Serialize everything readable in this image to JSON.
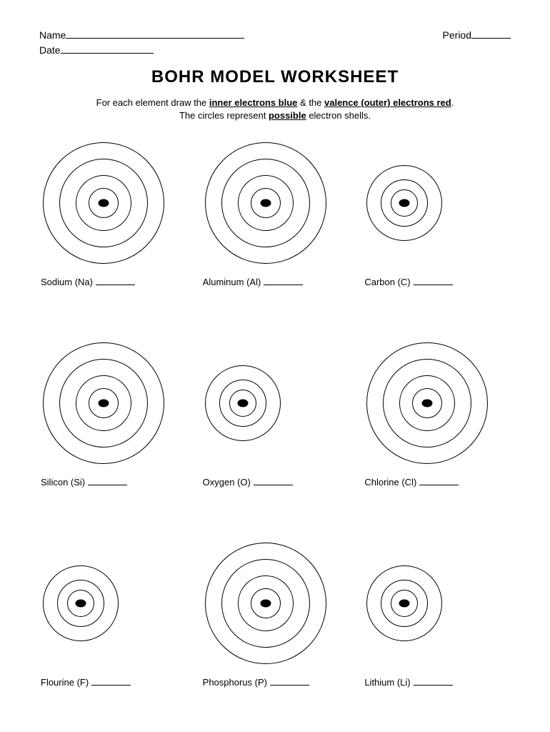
{
  "header": {
    "name_label": "Name",
    "name_blank_width": 250,
    "period_label": "Period",
    "period_blank_width": 55,
    "date_label": "Date",
    "date_blank_width": 130
  },
  "title": "BOHR MODEL WORKSHEET",
  "instructions": {
    "prefix": "For each element draw the ",
    "inner": "inner electrons blue",
    "middle": " & the ",
    "valence": "valence (outer) electrons red",
    "suffix": "."
  },
  "sub_instructions": {
    "prefix": "The circles represent ",
    "possible": "possible",
    "suffix": " electron shells."
  },
  "diagram_style": {
    "ring_stroke": "#000000",
    "ring_stroke_width": 1.5,
    "nucleus_color": "#000000",
    "nucleus_w": 15,
    "nucleus_h": 11
  },
  "elements": [
    {
      "label": "Sodium (Na)",
      "rings": [
        170,
        124,
        78,
        42
      ]
    },
    {
      "label": "Aluminum (Al)",
      "rings": [
        170,
        124,
        78,
        42
      ]
    },
    {
      "label": "Carbon (C)",
      "rings": [
        106,
        66,
        38
      ]
    },
    {
      "label": "Silicon (Si)",
      "rings": [
        170,
        124,
        78,
        42
      ]
    },
    {
      "label": "Oxygen (O)",
      "rings": [
        106,
        66,
        38
      ]
    },
    {
      "label": "Chlorine (Cl)",
      "rings": [
        170,
        124,
        78,
        42
      ]
    },
    {
      "label": "Flourine (F)",
      "rings": [
        106,
        66,
        38
      ]
    },
    {
      "label": "Phosphorus (P)",
      "rings": [
        170,
        124,
        78,
        42
      ]
    },
    {
      "label": "Lithium (Li)",
      "rings": [
        106,
        66,
        38
      ]
    }
  ],
  "label_blank_width": 55
}
